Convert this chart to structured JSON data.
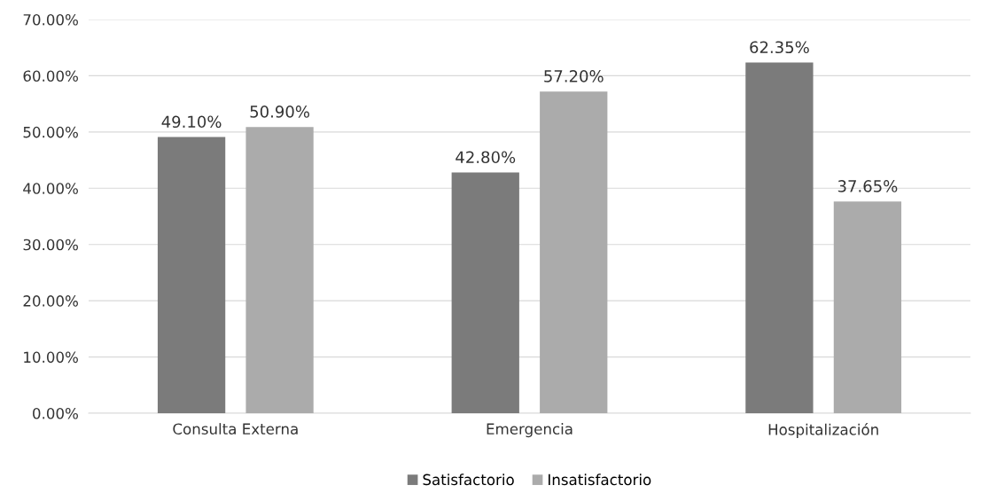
{
  "chart_data": {
    "type": "bar",
    "categories": [
      "Consulta Externa",
      "Emergencia",
      "Hospitalización"
    ],
    "series": [
      {
        "name": "Satisfactorio",
        "color": "#7b7b7b",
        "values": [
          49.1,
          42.8,
          62.35
        ],
        "value_labels": [
          "49.10%",
          "42.80%",
          "62.35%"
        ]
      },
      {
        "name": "Insatisfactorio",
        "color": "#ababab",
        "values": [
          50.9,
          57.2,
          37.65
        ],
        "value_labels": [
          "50.90%",
          "57.20%",
          "37.65%"
        ]
      }
    ],
    "ylim": [
      0,
      70
    ],
    "yticks": [
      {
        "value": 0,
        "label": "0.00%"
      },
      {
        "value": 10,
        "label": "10.00%"
      },
      {
        "value": 20,
        "label": "20.00%"
      },
      {
        "value": 30,
        "label": "30.00%"
      },
      {
        "value": 40,
        "label": "40.00%"
      },
      {
        "value": 50,
        "label": "50.00%"
      },
      {
        "value": 60,
        "label": "60.00%"
      },
      {
        "value": 70,
        "label": "70.00%"
      }
    ],
    "grid": "y",
    "legend": "bottom"
  }
}
